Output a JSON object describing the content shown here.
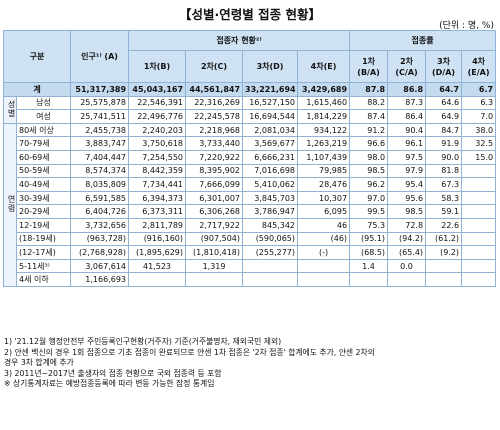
{
  "title": "【성별·연령별 접종 현황】",
  "unit": "(단위 : 명, %)",
  "headers": {
    "category": "구분",
    "population": "인구¹⁾ (A)",
    "vaccinated_group": "접종자 현황²⁾",
    "rate_group": "접종률",
    "d1": "1차(B)",
    "d2": "2차(C)",
    "d3": "3차(D)",
    "d4": "4차(E)",
    "r1": "1차 (B/A)",
    "r2": "2차 (C/A)",
    "r3": "3차 (D/A)",
    "r4": "4차 (E/A)"
  },
  "groups": {
    "gender": "성별",
    "age": "연령"
  },
  "total": {
    "label": "계",
    "values": [
      "51,317,389",
      "45,043,167",
      "44,561,847",
      "33,221,694",
      "3,429,689",
      "87.8",
      "86.8",
      "64.7",
      "6.7"
    ]
  },
  "gender_rows": [
    {
      "label": "남성",
      "values": [
        "25,575,878",
        "22,546,391",
        "22,316,269",
        "16,527,150",
        "1,615,460",
        "88.2",
        "87.3",
        "64.6",
        "6.3"
      ]
    },
    {
      "label": "여성",
      "values": [
        "25,741,511",
        "22,496,776",
        "22,245,578",
        "16,694,544",
        "1,814,229",
        "87.4",
        "86.4",
        "64.9",
        "7.0"
      ]
    }
  ],
  "age_rows": [
    {
      "label": "80세 이상",
      "values": [
        "2,455,738",
        "2,240,203",
        "2,218,968",
        "2,081,034",
        "934,122",
        "91.2",
        "90.4",
        "84.7",
        "38.0"
      ]
    },
    {
      "label": "70-79세",
      "values": [
        "3,883,747",
        "3,750,618",
        "3,733,440",
        "3,569,677",
        "1,263,219",
        "96.6",
        "96.1",
        "91.9",
        "32.5"
      ]
    },
    {
      "label": "60-69세",
      "values": [
        "7,404,447",
        "7,254,550",
        "7,220,922",
        "6,666,231",
        "1,107,439",
        "98.0",
        "97.5",
        "90.0",
        "15.0"
      ]
    },
    {
      "label": "50-59세",
      "values": [
        "8,574,374",
        "8,442,359",
        "8,395,902",
        "7,016,698",
        "79,985",
        "98.5",
        "97.9",
        "81.8",
        ""
      ]
    },
    {
      "label": "40-49세",
      "values": [
        "8,035,809",
        "7,734,441",
        "7,666,099",
        "5,410,062",
        "28,476",
        "96.2",
        "95.4",
        "67.3",
        ""
      ]
    },
    {
      "label": "30-39세",
      "values": [
        "6,591,585",
        "6,394,373",
        "6,301,007",
        "3,845,703",
        "10,307",
        "97.0",
        "95.6",
        "58.3",
        ""
      ]
    },
    {
      "label": "20-29세",
      "values": [
        "6,404,726",
        "6,373,311",
        "6,306,268",
        "3,786,947",
        "6,095",
        "99.5",
        "98.5",
        "59.1",
        ""
      ]
    },
    {
      "label": "12-19세",
      "values": [
        "3,732,656",
        "2,811,789",
        "2,717,922",
        "845,342",
        "46",
        "75.3",
        "72.8",
        "22.6",
        ""
      ]
    },
    {
      "label": "(18-19세)",
      "values": [
        "(963,728)",
        "(916,160)",
        "(907,504)",
        "(590,065)",
        "(46)",
        "(95.1)",
        "(94.2)",
        "(61.2)",
        ""
      ]
    },
    {
      "label": "(12-17세)",
      "values": [
        "(2,768,928)",
        "(1,895,629)",
        "(1,810,418)",
        "(255,277)",
        "(-)",
        "(68.5)",
        "(65.4)",
        "(9.2)",
        ""
      ]
    },
    {
      "label": "5-11세³⁾",
      "values": [
        "3,067,614",
        "41,523",
        "1,319",
        "",
        "",
        "1.4",
        "0.0",
        "",
        ""
      ]
    },
    {
      "label": "4세 이하",
      "values": [
        "1,166,693",
        "",
        "",
        "",
        "",
        "",
        "",
        "",
        ""
      ]
    }
  ],
  "notes": [
    "1)  '21.12월 행정안전부 주민등록인구현황(거주자) 기준(거주불명자, 재외국민 제외)",
    "2)  얀센 백신의 경우 1회 접종으로 기초 접종이 완료되므로 얀센 1차 접종은 '2차 접종' 합계에도 추가, 얀센 2차의",
    "     경우 3차 합계에 추가",
    "3)  2011년~2017년 출생자의 접종 현황으로 국외 접종력 등 포함",
    "※  상기통계자료는 예방접종등록에 따라 변동 가능한 잠정 통계임"
  ]
}
